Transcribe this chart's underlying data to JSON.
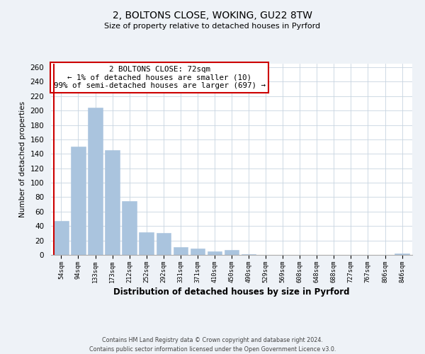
{
  "title": "2, BOLTONS CLOSE, WOKING, GU22 8TW",
  "subtitle": "Size of property relative to detached houses in Pyrford",
  "xlabel": "Distribution of detached houses by size in Pyrford",
  "ylabel": "Number of detached properties",
  "bar_labels": [
    "54sqm",
    "94sqm",
    "133sqm",
    "173sqm",
    "212sqm",
    "252sqm",
    "292sqm",
    "331sqm",
    "371sqm",
    "410sqm",
    "450sqm",
    "490sqm",
    "529sqm",
    "569sqm",
    "608sqm",
    "648sqm",
    "688sqm",
    "727sqm",
    "767sqm",
    "806sqm",
    "846sqm"
  ],
  "bar_values": [
    47,
    150,
    204,
    145,
    75,
    31,
    30,
    11,
    9,
    5,
    7,
    1,
    0,
    0,
    0,
    0,
    0,
    0,
    0,
    0,
    2
  ],
  "bar_color": "#aac4de",
  "bar_edge_color": "#aac4de",
  "highlight_color": "#cc0000",
  "highlight_index": 0,
  "annotation_title": "2 BOLTONS CLOSE: 72sqm",
  "annotation_line2": "← 1% of detached houses are smaller (10)",
  "annotation_line3": "99% of semi-detached houses are larger (697) →",
  "annotation_box_color": "#cc0000",
  "ylim": [
    0,
    265
  ],
  "yticks": [
    0,
    20,
    40,
    60,
    80,
    100,
    120,
    140,
    160,
    180,
    200,
    220,
    240,
    260
  ],
  "footer_line1": "Contains HM Land Registry data © Crown copyright and database right 2024.",
  "footer_line2": "Contains public sector information licensed under the Open Government Licence v3.0.",
  "bg_color": "#eef2f7",
  "plot_bg_color": "#ffffff",
  "grid_color": "#c8d4e0"
}
